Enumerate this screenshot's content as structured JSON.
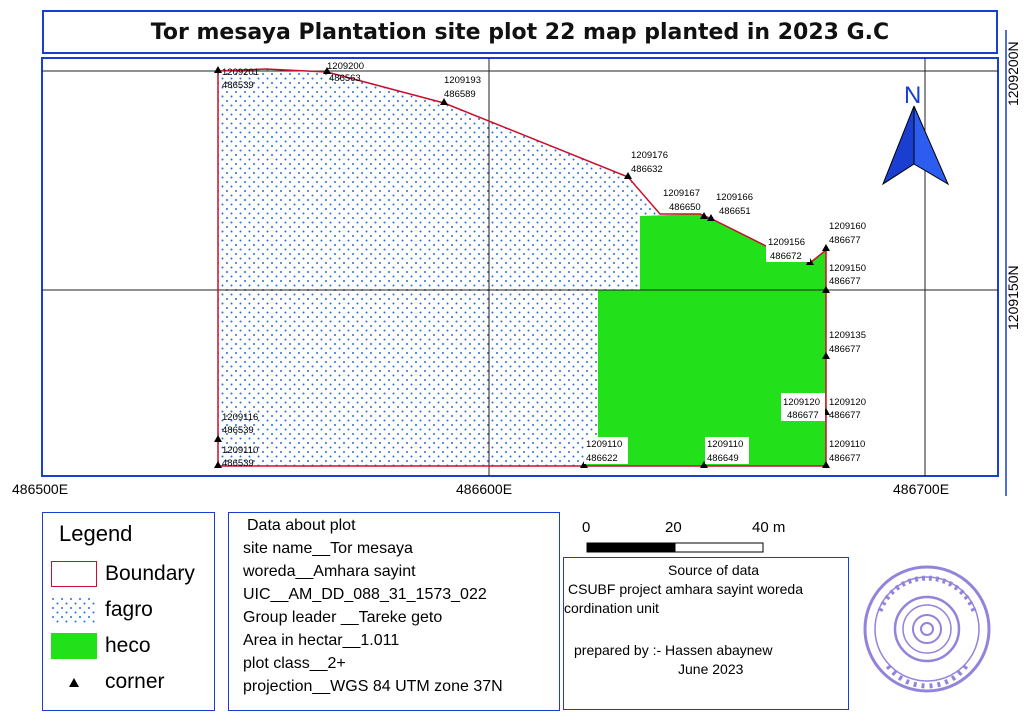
{
  "title": "Tor mesaya Plantation site plot 22 map planted in 2023 G.C",
  "grid_labels": {
    "x": [
      "486500E",
      "486600E",
      "486700E"
    ],
    "y": [
      "1209200N",
      "1209150N"
    ]
  },
  "north_arrow": {
    "letter": "N",
    "icon": "north-arrow-icon",
    "color": "#1a3fd0"
  },
  "corners": [
    {
      "northing": "1209201",
      "easting": "486539"
    },
    {
      "northing": "1209200",
      "easting": "486563"
    },
    {
      "northing": "1209193",
      "easting": "486589"
    },
    {
      "northing": "1209176",
      "easting": "486632"
    },
    {
      "northing": "1209167",
      "easting": "486650"
    },
    {
      "northing": "1209166",
      "easting": "486651"
    },
    {
      "northing": "1209160",
      "easting": "486677"
    },
    {
      "northing": "1209156",
      "easting": "486672"
    },
    {
      "northing": "1209150",
      "easting": "486677"
    },
    {
      "northing": "1209135",
      "easting": "486677"
    },
    {
      "northing": "1209120",
      "easting": "486677"
    },
    {
      "northing": "1209120",
      "easting": "486677"
    },
    {
      "northing": "1209110",
      "easting": "486677"
    },
    {
      "northing": "1209110",
      "easting": "486649"
    },
    {
      "northing": "1209110",
      "easting": "486622"
    },
    {
      "northing": "1209116",
      "easting": "486539"
    },
    {
      "northing": "1209110",
      "easting": "486539"
    }
  ],
  "legend": {
    "title": "Legend",
    "items": [
      {
        "label": "Boundary",
        "color": "#c8102e"
      },
      {
        "label": "fagro",
        "color": "#2a6fd6"
      },
      {
        "label": "heco",
        "color": "#22e01a"
      },
      {
        "label": "corner",
        "icon": "triangle-marker-icon"
      }
    ]
  },
  "scale_bar": {
    "labels": [
      "0",
      "20",
      "40 m"
    ]
  },
  "plot_info": {
    "heading": "Data about plot",
    "lines": [
      "site name__Tor mesaya",
      "woreda__Amhara sayint",
      "UIC__AM_DD_088_31_1573_022",
      "Group leader __Tareke geto",
      "Area in hectar__1.011",
      "plot class__2+",
      "projection__WGS 84 UTM zone 37N"
    ]
  },
  "source": {
    "heading": "Source of data",
    "line1": "CSUBF project amhara sayint woreda",
    "line2": "cordination unit",
    "prepared_by": "prepared by :- Hassen abaynew",
    "date": "June 2023"
  },
  "stamp": {
    "icon": "official-stamp-icon",
    "color": "#6b5bd0"
  },
  "colors": {
    "frame": "#1a3fd0",
    "boundary": "#c8102e",
    "heco": "#22e01a",
    "fagro_dot": "#2a6fd6"
  }
}
